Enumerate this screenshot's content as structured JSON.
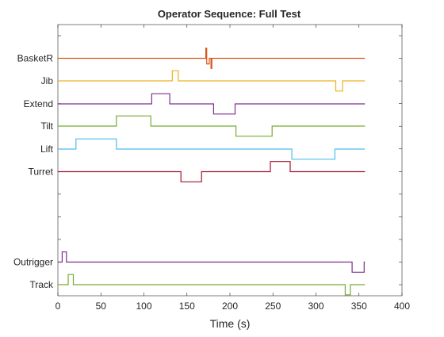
{
  "chart_data": {
    "type": "line",
    "title": "Operator Sequence: Full Test",
    "xlabel": "Time (s)",
    "ylabel": "",
    "xlim": [
      0,
      400
    ],
    "x_ticks": [
      "0",
      "50",
      "100",
      "150",
      "200",
      "250",
      "300",
      "350",
      "400"
    ],
    "grid": false,
    "legend": "none",
    "series": [
      {
        "name": "BasketR",
        "color": "#D95319",
        "points": [
          [
            0,
            0
          ],
          [
            172,
            0
          ],
          [
            172,
            0.45
          ],
          [
            173,
            0.45
          ],
          [
            173,
            -0.25
          ],
          [
            176,
            -0.25
          ],
          [
            176,
            0
          ],
          [
            178,
            0
          ],
          [
            178,
            -0.45
          ],
          [
            179,
            -0.45
          ],
          [
            179,
            0
          ],
          [
            357,
            0
          ]
        ]
      },
      {
        "name": "Jib",
        "color": "#EDB120",
        "points": [
          [
            0,
            0
          ],
          [
            133,
            0
          ],
          [
            133,
            0.45
          ],
          [
            140,
            0.45
          ],
          [
            140,
            0
          ],
          [
            323,
            0
          ],
          [
            323,
            -0.45
          ],
          [
            331,
            -0.45
          ],
          [
            331,
            0
          ],
          [
            357,
            0
          ]
        ]
      },
      {
        "name": "Extend",
        "color": "#7E2F8E",
        "points": [
          [
            0,
            0
          ],
          [
            109,
            0
          ],
          [
            109,
            0.45
          ],
          [
            130,
            0.45
          ],
          [
            130,
            0
          ],
          [
            181,
            0
          ],
          [
            181,
            -0.45
          ],
          [
            206,
            -0.45
          ],
          [
            206,
            0
          ],
          [
            357,
            0
          ]
        ]
      },
      {
        "name": "Tilt",
        "color": "#77AC30",
        "points": [
          [
            0,
            0
          ],
          [
            68,
            0
          ],
          [
            68,
            0.45
          ],
          [
            108,
            0.45
          ],
          [
            108,
            0
          ],
          [
            207,
            0
          ],
          [
            207,
            -0.45
          ],
          [
            249,
            -0.45
          ],
          [
            249,
            0
          ],
          [
            357,
            0
          ]
        ]
      },
      {
        "name": "Lift",
        "color": "#4DBEEE",
        "points": [
          [
            0,
            0
          ],
          [
            21,
            0
          ],
          [
            21,
            0.45
          ],
          [
            68,
            0.45
          ],
          [
            68,
            0
          ],
          [
            272,
            0
          ],
          [
            272,
            -0.45
          ],
          [
            322,
            -0.45
          ],
          [
            322,
            0
          ],
          [
            357,
            0
          ]
        ]
      },
      {
        "name": "Turret",
        "color": "#A2142F",
        "points": [
          [
            0,
            0
          ],
          [
            143,
            0
          ],
          [
            143,
            -0.45
          ],
          [
            167,
            -0.45
          ],
          [
            167,
            0
          ],
          [
            247,
            0
          ],
          [
            247,
            0.45
          ],
          [
            270,
            0.45
          ],
          [
            270,
            0
          ],
          [
            357,
            0
          ]
        ]
      },
      {
        "name": "Outrigger",
        "color": "#7E2F8E",
        "points": [
          [
            0,
            0
          ],
          [
            5,
            0
          ],
          [
            5,
            0.45
          ],
          [
            10,
            0.45
          ],
          [
            10,
            0
          ],
          [
            342,
            0
          ],
          [
            342,
            -0.45
          ],
          [
            356,
            -0.45
          ],
          [
            356,
            0
          ],
          [
            357,
            0
          ]
        ]
      },
      {
        "name": "Track",
        "color": "#77AC30",
        "points": [
          [
            0,
            0
          ],
          [
            12,
            0
          ],
          [
            12,
            0.45
          ],
          [
            18,
            0.45
          ],
          [
            18,
            0
          ],
          [
            334,
            0
          ],
          [
            334,
            -0.45
          ],
          [
            340,
            -0.45
          ],
          [
            340,
            0
          ],
          [
            357,
            0
          ]
        ]
      }
    ]
  }
}
